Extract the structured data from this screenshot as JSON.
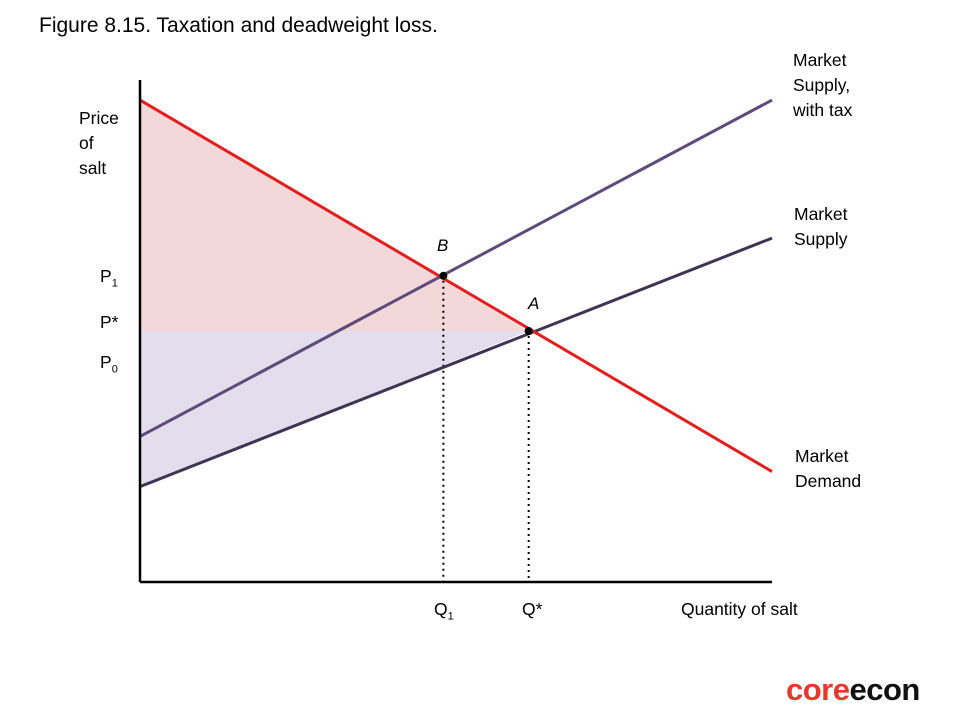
{
  "page": {
    "title": "Figure 8.15. Taxation and deadweight loss."
  },
  "chart_data": {
    "type": "line",
    "title": "Figure 8.15. Taxation and deadweight loss.",
    "xlabel": "Quantity of salt",
    "ylabel_lines": [
      "Price",
      "of",
      "salt"
    ],
    "xlim": [
      0,
      10
    ],
    "ylim": [
      0,
      10
    ],
    "ticks": {
      "x": [
        {
          "label": "Q",
          "sub": "1",
          "value": 4.8
        },
        {
          "label": "Q*",
          "sub": "",
          "value": 6.15
        }
      ],
      "y": [
        {
          "label": "P",
          "sub": "1",
          "value": 6.1
        },
        {
          "label": "P*",
          "sub": "",
          "value": 5.0
        },
        {
          "label": "P",
          "sub": "0",
          "value": 4.3
        }
      ]
    },
    "series": [
      {
        "name": "Market Demand",
        "label_lines": [
          "Market",
          "Demand"
        ],
        "color": "#e41e1e",
        "x": [
          0,
          10
        ],
        "y": [
          9.6,
          2.2
        ]
      },
      {
        "name": "Market Supply",
        "label_lines": [
          "Market",
          "Supply"
        ],
        "color": "#3d3553",
        "x": [
          0,
          10
        ],
        "y": [
          1.9,
          6.85
        ]
      },
      {
        "name": "Market Supply, with tax",
        "label_lines": [
          "Market",
          "Supply,",
          "with tax"
        ],
        "color": "#5e4b7c",
        "x": [
          0,
          10
        ],
        "y": [
          2.9,
          9.6
        ]
      }
    ],
    "points": [
      {
        "name": "A",
        "x": 6.15,
        "y": 5.0
      },
      {
        "name": "B",
        "x": 4.8,
        "y": 6.1
      }
    ],
    "shaded_regions": [
      {
        "name": "consumer surplus",
        "color": "#f2d8d8"
      },
      {
        "name": "producer surplus",
        "color": "#e4deec"
      }
    ]
  },
  "brand": {
    "logo_core": "core",
    "logo_econ": "econ",
    "core_color": "#e8382e",
    "econ_color": "#111111"
  }
}
